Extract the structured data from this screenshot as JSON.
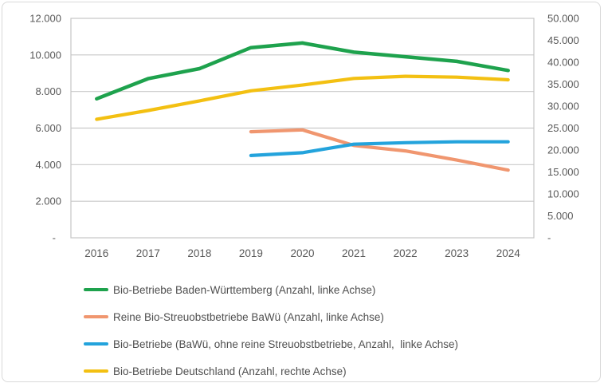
{
  "chart_data": {
    "type": "line",
    "title": "",
    "x": [
      2016,
      2017,
      2018,
      2019,
      2020,
      2021,
      2022,
      2023,
      2024
    ],
    "x_labels": [
      "2016",
      "2017",
      "2018",
      "2019",
      "2020",
      "2021",
      "2022",
      "2023",
      "2024"
    ],
    "grid": true,
    "legend_position": "bottom-left",
    "left_axis": {
      "min": 0,
      "max": 12000,
      "tick_step": 2000,
      "ticks": [
        "12.000",
        "10.000",
        "8.000",
        "6.000",
        "4.000",
        "2.000",
        "-"
      ]
    },
    "right_axis": {
      "min": 0,
      "max": 50000,
      "tick_step": 5000,
      "ticks": [
        "50.000",
        "45.000",
        "40.000",
        "35.000",
        "30.000",
        "25.000",
        "20.000",
        "15.000",
        "10.000",
        "5.000",
        "-"
      ]
    },
    "series": [
      {
        "id": "bio-betriebe-bw",
        "name": "Bio-Betriebe Baden-Württemberg (Anzahl, linke Achse)",
        "axis": "left",
        "color": "#1ea24d",
        "stroke_width": 4.5,
        "values": [
          7600,
          8700,
          9250,
          10400,
          10650,
          10150,
          9900,
          9650,
          9150
        ]
      },
      {
        "id": "reine-bio-streuobstbetriebe-bawue",
        "name": "Reine Bio-Streuobstbetriebe BaWü (Anzahl, linke Achse)",
        "axis": "left",
        "color": "#f0966f",
        "stroke_width": 4.2,
        "values": [
          null,
          null,
          null,
          5800,
          5900,
          5050,
          4750,
          4250,
          3700
        ]
      },
      {
        "id": "bio-betriebe-bawue-ohne-streuobst",
        "name": "Bio-Betriebe (BaWü, ohne reine Streuobstbetriebe, Anzahl,  linke Achse)",
        "axis": "left",
        "color": "#23a3dc",
        "stroke_width": 4.2,
        "values": [
          null,
          null,
          null,
          4500,
          4650,
          5120,
          5200,
          5250,
          5250
        ]
      },
      {
        "id": "bio-betriebe-deutschland",
        "name": "Bio-Betriebe Deutschland (Anzahl, rechte Achse)",
        "axis": "right",
        "color": "#f3c012",
        "stroke_width": 4.2,
        "values": [
          27000,
          29000,
          31200,
          33500,
          34800,
          36300,
          36800,
          36600,
          36000
        ]
      }
    ]
  },
  "colors": {
    "gridline": "#c9c9c9",
    "plot_border": "#c6c6c6",
    "frame_border": "#d9d9d9",
    "axis_text": "#595959",
    "legend_text": "#4f4f4f",
    "background": "#ffffff"
  }
}
